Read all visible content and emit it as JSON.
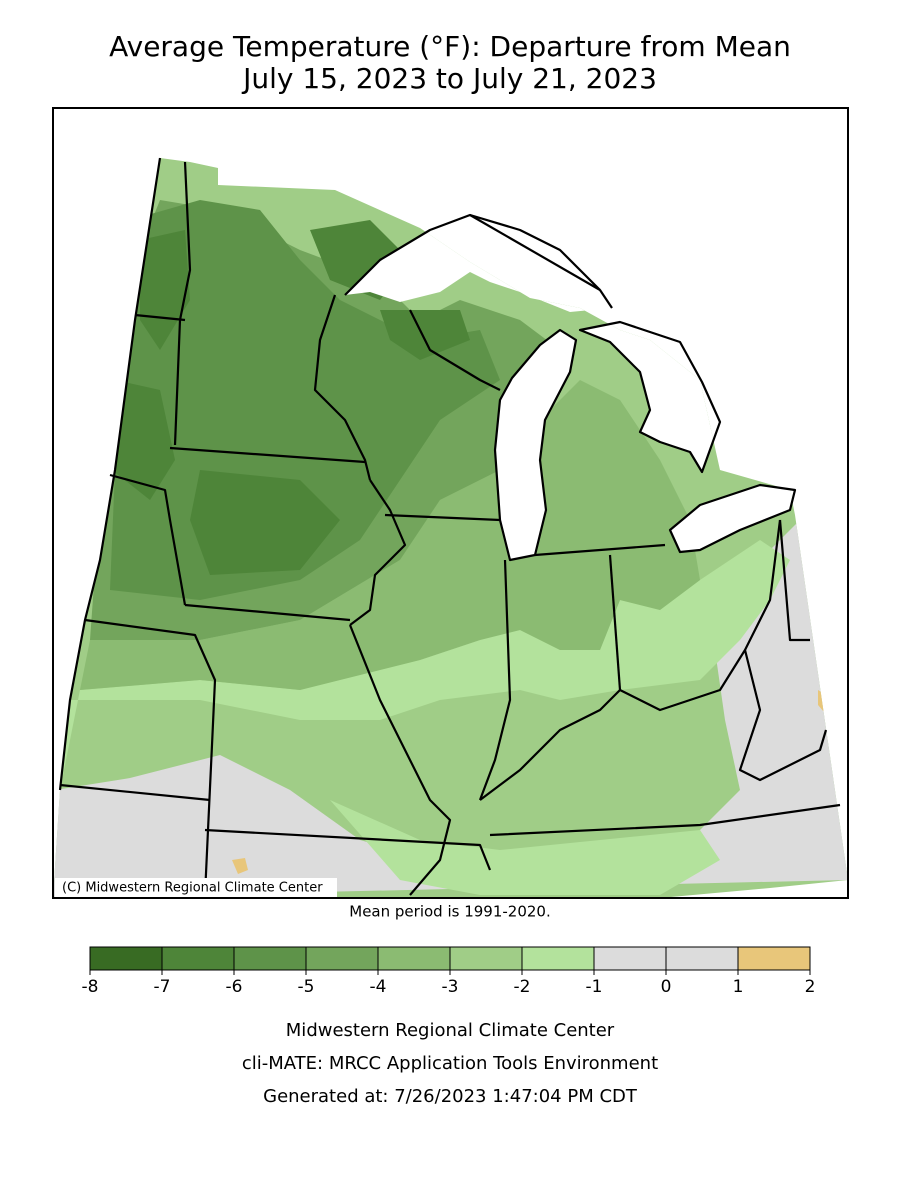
{
  "title": [
    "Average Temperature (°F): Departure from Mean",
    "July 15, 2023 to July 21, 2023"
  ],
  "map": {
    "credit": "(C) Midwestern Regional Climate Center"
  },
  "note": "Mean period is 1991-2020.",
  "legend": {
    "bounds": [
      -8,
      -7,
      -6,
      -5,
      -4,
      -3,
      -2,
      -1,
      0,
      1,
      2
    ],
    "colors": [
      "#386b23",
      "#4e8539",
      "#5e9349",
      "#73a55c",
      "#8bbb72",
      "#a0cd87",
      "#b3e29c",
      "#dcdcdc",
      "#dcdcdc",
      "#e8c67a"
    ]
  },
  "footer": [
    "Midwestern Regional Climate Center",
    "cli-MATE: MRCC Application Tools Environment",
    "Generated at: 7/26/2023 1:47:04 PM CDT"
  ]
}
